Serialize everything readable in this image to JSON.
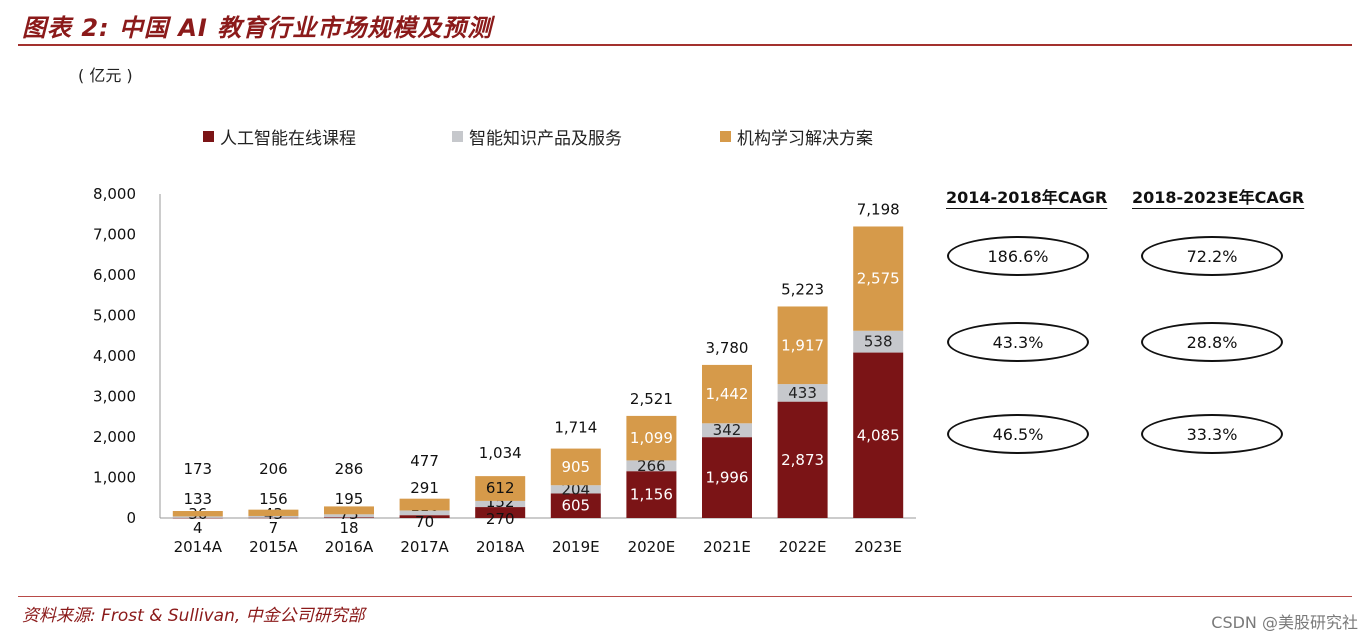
{
  "title": "图表 2:  中国 AI 教育行业市场规模及预测",
  "unit": "( 亿元 )",
  "source": "资料来源:  Frost & Sullivan,  中金公司研究部",
  "watermark": "CSDN @美股研究社",
  "cagr": {
    "headers": [
      "2014-2018年CAGR",
      "2018-2023E年CAGR"
    ],
    "rows": [
      [
        "186.6%",
        "72.2%"
      ],
      [
        "43.3%",
        "28.8%"
      ],
      [
        "46.5%",
        "33.3%"
      ]
    ]
  },
  "chart_data": {
    "type": "bar",
    "stacked": true,
    "categories": [
      "2014A",
      "2015A",
      "2016A",
      "2017A",
      "2018A",
      "2019E",
      "2020E",
      "2021E",
      "2022E",
      "2023E"
    ],
    "series": [
      {
        "name": "人工智能在线课程",
        "color": "#7b1416",
        "values": [
          4,
          7,
          18,
          70,
          270,
          605,
          1156,
          1996,
          2873,
          4085
        ]
      },
      {
        "name": "智能知识产品及服务",
        "color": "#c6c8cc",
        "values": [
          36,
          43,
          73,
          116,
          152,
          204,
          266,
          342,
          433,
          538
        ]
      },
      {
        "name": "机构学习解决方案",
        "color": "#d69a4a",
        "values": [
          133,
          156,
          195,
          291,
          612,
          905,
          1099,
          1442,
          1917,
          2575
        ]
      }
    ],
    "totals": [
      173,
      206,
      286,
      477,
      "1,034",
      "1,714",
      "2,521",
      "3,780",
      "5,223",
      "7,198"
    ],
    "yticks": [
      "0",
      "1,000",
      "2,000",
      "3,000",
      "4,000",
      "5,000",
      "6,000",
      "7,000",
      "8,000"
    ],
    "ylim": [
      0,
      8000
    ],
    "legend_position": "top",
    "grid": false
  }
}
